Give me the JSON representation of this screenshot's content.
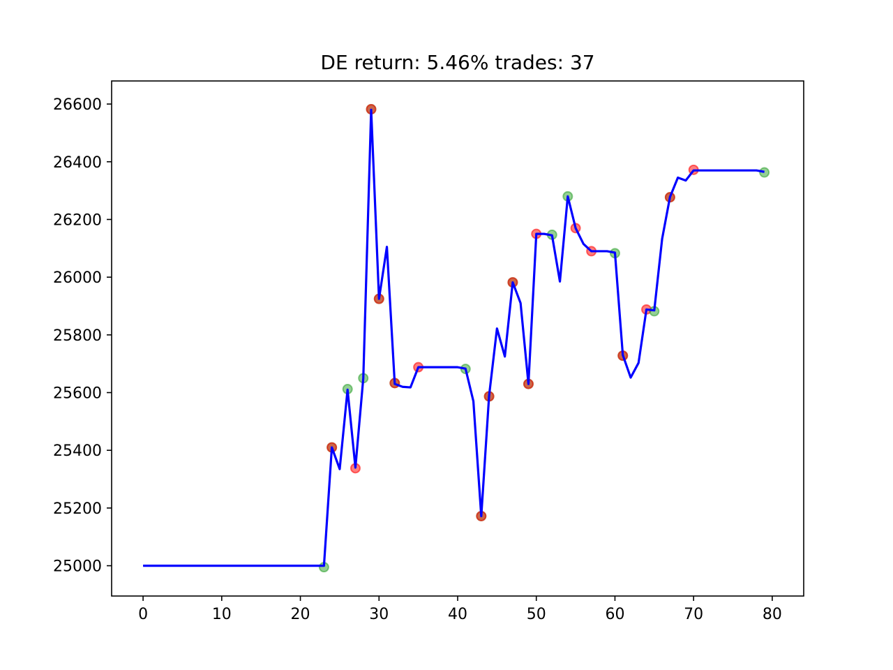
{
  "chart_data": {
    "type": "line",
    "title": "DE return: 5.46% trades: 37",
    "xlabel": "",
    "ylabel": "",
    "xlim": [
      -4,
      84
    ],
    "ylim": [
      24895,
      26680
    ],
    "x_ticks": [
      0,
      10,
      20,
      30,
      40,
      50,
      60,
      70,
      80
    ],
    "y_ticks": [
      25000,
      25200,
      25400,
      25600,
      25800,
      26000,
      26200,
      26400,
      26600
    ],
    "grid": false,
    "legend": "none",
    "line_color": "#0000ff",
    "series": [
      {
        "x": [
          0,
          1,
          2,
          3,
          4,
          5,
          6,
          7,
          8,
          9,
          10,
          11,
          12,
          13,
          14,
          15,
          16,
          17,
          18,
          19,
          20,
          21,
          22,
          23,
          24,
          25,
          26,
          27,
          28,
          29,
          30,
          31,
          32,
          33,
          34,
          35,
          36,
          37,
          38,
          39,
          40,
          41,
          42,
          43,
          44,
          45,
          46,
          47,
          48,
          49,
          50,
          51,
          52,
          53,
          54,
          55,
          56,
          57,
          58,
          59,
          60,
          61,
          62,
          63,
          64,
          65,
          66,
          67,
          68,
          69,
          70,
          71,
          72,
          73,
          74,
          75,
          76,
          77,
          78,
          79
        ],
        "y": [
          25000,
          25000,
          25000,
          25000,
          25000,
          25000,
          25000,
          25000,
          25000,
          25000,
          25000,
          25000,
          25000,
          25000,
          25000,
          25000,
          25000,
          25000,
          25000,
          25000,
          25000,
          25000,
          25000,
          25000,
          25410,
          25335,
          25610,
          25340,
          25650,
          26580,
          25925,
          26105,
          25630,
          25620,
          25618,
          25688,
          25688,
          25688,
          25688,
          25688,
          25688,
          25683,
          25570,
          25172,
          25590,
          25822,
          25725,
          25982,
          25910,
          25630,
          26150,
          26150,
          26145,
          25985,
          26280,
          26170,
          26115,
          26090,
          26090,
          26090,
          26085,
          25730,
          25652,
          25703,
          25888,
          25885,
          26133,
          26278,
          26345,
          26335,
          26370,
          26370,
          26370,
          26370,
          26370,
          26370,
          26370,
          26370,
          26370,
          26365
        ]
      }
    ],
    "markers": [
      {
        "x": 23,
        "y": 24995,
        "color": "#2ca02c"
      },
      {
        "x": 24,
        "y": 25410,
        "color": "#2ca02c"
      },
      {
        "x": 24,
        "y": 25410,
        "color": "#ff0000"
      },
      {
        "x": 26,
        "y": 25612,
        "color": "#2ca02c"
      },
      {
        "x": 27,
        "y": 25338,
        "color": "#ff0000"
      },
      {
        "x": 28,
        "y": 25650,
        "color": "#2ca02c"
      },
      {
        "x": 29,
        "y": 26582,
        "color": "#2ca02c"
      },
      {
        "x": 29,
        "y": 26582,
        "color": "#ff0000"
      },
      {
        "x": 30,
        "y": 25925,
        "color": "#2ca02c"
      },
      {
        "x": 30,
        "y": 25925,
        "color": "#ff0000"
      },
      {
        "x": 32,
        "y": 25633,
        "color": "#2ca02c"
      },
      {
        "x": 32,
        "y": 25633,
        "color": "#ff0000"
      },
      {
        "x": 35,
        "y": 25688,
        "color": "#ff0000"
      },
      {
        "x": 41,
        "y": 25682,
        "color": "#2ca02c"
      },
      {
        "x": 43,
        "y": 25172,
        "color": "#2ca02c"
      },
      {
        "x": 43,
        "y": 25172,
        "color": "#ff0000"
      },
      {
        "x": 44,
        "y": 25587,
        "color": "#2ca02c"
      },
      {
        "x": 44,
        "y": 25587,
        "color": "#ff0000"
      },
      {
        "x": 47,
        "y": 25982,
        "color": "#2ca02c"
      },
      {
        "x": 47,
        "y": 25982,
        "color": "#ff0000"
      },
      {
        "x": 49,
        "y": 25630,
        "color": "#2ca02c"
      },
      {
        "x": 49,
        "y": 25630,
        "color": "#ff0000"
      },
      {
        "x": 50,
        "y": 26150,
        "color": "#ff0000"
      },
      {
        "x": 52,
        "y": 26147,
        "color": "#2ca02c"
      },
      {
        "x": 54,
        "y": 26280,
        "color": "#2ca02c"
      },
      {
        "x": 55,
        "y": 26170,
        "color": "#ff0000"
      },
      {
        "x": 57,
        "y": 26090,
        "color": "#ff0000"
      },
      {
        "x": 60,
        "y": 26083,
        "color": "#2ca02c"
      },
      {
        "x": 61,
        "y": 25728,
        "color": "#2ca02c"
      },
      {
        "x": 61,
        "y": 25728,
        "color": "#ff0000"
      },
      {
        "x": 64,
        "y": 25888,
        "color": "#ff0000"
      },
      {
        "x": 65,
        "y": 25882,
        "color": "#2ca02c"
      },
      {
        "x": 67,
        "y": 26277,
        "color": "#2ca02c"
      },
      {
        "x": 67,
        "y": 26277,
        "color": "#ff0000"
      },
      {
        "x": 70,
        "y": 26372,
        "color": "#ff0000"
      },
      {
        "x": 79,
        "y": 26363,
        "color": "#2ca02c"
      }
    ]
  }
}
